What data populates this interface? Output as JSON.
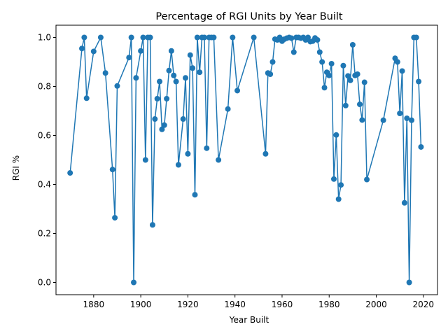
{
  "chart_data": {
    "type": "line",
    "title": "Percentage of RGI Units by Year Built",
    "xlabel": "Year Built",
    "ylabel": "RGI %",
    "xlim": [
      1864,
      2026
    ],
    "ylim": [
      -0.05,
      1.05
    ],
    "xticks": [
      1880,
      1900,
      1920,
      1940,
      1960,
      1980,
      2000,
      2020
    ],
    "yticks": [
      0.0,
      0.2,
      0.4,
      0.6,
      0.8,
      1.0
    ],
    "ytick_labels": [
      "0.0",
      "0.2",
      "0.4",
      "0.6",
      "0.8",
      "1.0"
    ],
    "grid": false,
    "legend": "none",
    "series": [
      {
        "color": "#1f77b4",
        "marker": "circle",
        "x": [
          1870,
          1875,
          1876,
          1877,
          1880,
          1883,
          1885,
          1888,
          1889,
          1890,
          1895,
          1896,
          1897,
          1898,
          1900,
          1901,
          1902,
          1903,
          1904,
          1905,
          1906,
          1907,
          1908,
          1909,
          1910,
          1911,
          1912,
          1913,
          1914,
          1915,
          1916,
          1918,
          1919,
          1920,
          1921,
          1922,
          1923,
          1924,
          1925,
          1926,
          1927,
          1928,
          1929,
          1930,
          1931,
          1933,
          1937,
          1939,
          1941,
          1948,
          1953,
          1954,
          1955,
          1956,
          1957,
          1958,
          1959,
          1960,
          1961,
          1962,
          1963,
          1964,
          1965,
          1966,
          1967,
          1968,
          1969,
          1970,
          1971,
          1972,
          1973,
          1974,
          1975,
          1976,
          1977,
          1978,
          1979,
          1980,
          1981,
          1982,
          1983,
          1984,
          1985,
          1986,
          1987,
          1988,
          1989,
          1990,
          1991,
          1992,
          1993,
          1994,
          1995,
          1996,
          2003,
          2008,
          2009,
          2010,
          2011,
          2012,
          2013,
          2014,
          2015,
          2016,
          2017,
          2018,
          2019
        ],
        "y": [
          0.447,
          0.955,
          1.0,
          0.752,
          0.943,
          1.0,
          0.855,
          0.461,
          0.264,
          0.802,
          0.918,
          1.0,
          0.0,
          0.835,
          0.945,
          1.0,
          0.5,
          1.0,
          1.0,
          0.235,
          0.667,
          0.75,
          0.82,
          0.625,
          0.642,
          0.75,
          0.865,
          0.945,
          0.845,
          0.82,
          0.48,
          0.667,
          0.835,
          0.525,
          0.928,
          0.875,
          0.358,
          1.0,
          0.858,
          1.0,
          1.0,
          0.548,
          1.0,
          1.0,
          1.0,
          0.5,
          0.708,
          1.0,
          0.783,
          1.0,
          0.525,
          0.855,
          0.85,
          0.9,
          0.993,
          0.99,
          1.0,
          0.985,
          0.993,
          0.997,
          1.0,
          0.997,
          0.94,
          1.0,
          1.0,
          0.997,
          1.0,
          0.99,
          1.0,
          0.983,
          0.985,
          0.998,
          0.99,
          0.94,
          0.9,
          0.795,
          0.858,
          0.845,
          0.893,
          0.422,
          0.602,
          0.34,
          0.398,
          0.885,
          0.722,
          0.843,
          0.825,
          0.97,
          0.845,
          0.85,
          0.727,
          0.663,
          0.817,
          0.42,
          0.662,
          0.915,
          0.9,
          0.69,
          0.863,
          0.325,
          0.67,
          0.0,
          0.662,
          1.0,
          1.0,
          0.82,
          0.553
        ]
      }
    ]
  }
}
